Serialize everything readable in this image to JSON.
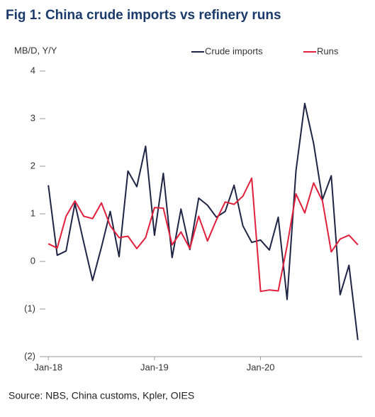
{
  "chart_data": {
    "type": "line",
    "title": "Fig 1: China crude imports vs refinery runs",
    "y_label": "MB/D, Y/Y",
    "source": "Source: NBS, China customs, Kpler, OIES",
    "categories": [
      "Jan-18",
      null,
      null,
      null,
      null,
      null,
      null,
      null,
      null,
      null,
      null,
      null,
      "Jan-19",
      null,
      null,
      null,
      null,
      null,
      null,
      null,
      null,
      null,
      null,
      null,
      "Jan-20",
      null,
      null,
      null,
      null,
      null,
      null,
      null,
      null,
      null,
      null,
      null
    ],
    "series": [
      {
        "name": "Crude imports",
        "color": "#1f2445",
        "values": [
          1.6,
          0.13,
          0.22,
          1.22,
          0.4,
          -0.4,
          0.3,
          1.05,
          0.1,
          1.9,
          1.57,
          2.42,
          0.55,
          1.85,
          0.08,
          1.1,
          0.25,
          1.33,
          1.18,
          0.93,
          1.05,
          1.6,
          0.75,
          0.4,
          0.45,
          0.24,
          0.93,
          -0.8,
          1.9,
          3.32,
          2.48,
          1.3,
          1.8,
          -0.7,
          -0.08,
          -1.65
        ]
      },
      {
        "name": "Runs",
        "color": "#e0203c",
        "values": [
          0.37,
          0.28,
          0.95,
          1.27,
          0.95,
          0.9,
          1.23,
          0.75,
          0.5,
          0.53,
          0.27,
          0.5,
          1.13,
          1.12,
          0.35,
          0.62,
          0.27,
          0.95,
          0.43,
          0.87,
          1.25,
          1.2,
          1.37,
          1.75,
          -0.63,
          -0.6,
          -0.62,
          0.33,
          1.42,
          1.02,
          1.65,
          1.27,
          0.2,
          0.47,
          0.55,
          0.35
        ]
      }
    ],
    "ylim": [
      -2,
      4
    ],
    "yticks": [
      4,
      3,
      2,
      1,
      0,
      {
        "value": -1,
        "label": "(1)"
      },
      {
        "value": -2,
        "label": "(2)"
      }
    ],
    "grid": false
  }
}
